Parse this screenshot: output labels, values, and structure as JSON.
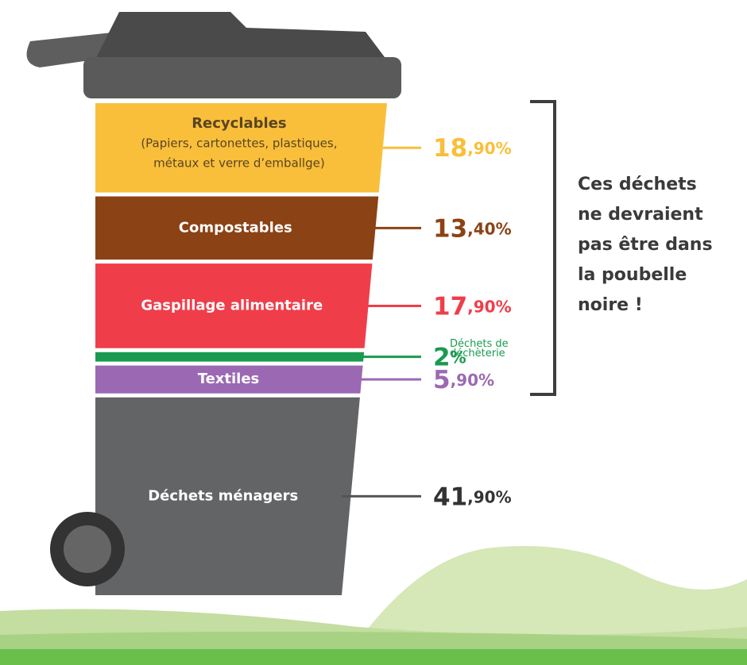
{
  "chart_data": {
    "type": "bin",
    "categories": [
      "Recyclables",
      "Compostables",
      "Gaspillage alimentaire",
      "Déchets de déchèterie",
      "Textiles",
      "Déchets ménagers"
    ],
    "category_notes": {
      "0": [
        "(Papiers, cartonettes, plastiques,",
        "métaux et verre d’emballge)"
      ]
    },
    "values": [
      18.9,
      13.4,
      17.9,
      2,
      5.9,
      41.9
    ],
    "value_labels": [
      "18,90%",
      "13,40%",
      "17,90%",
      "2%",
      "5,90%",
      "41,90%"
    ],
    "colors": [
      "#f9bf3b",
      "#8b4215",
      "#ef3e4a",
      "#1a9a50",
      "#9b69b3",
      "#636466"
    ],
    "annotation": [
      "Ces déchets",
      "ne devraient",
      "pas être dans",
      "la poubelle",
      "noire !"
    ]
  }
}
